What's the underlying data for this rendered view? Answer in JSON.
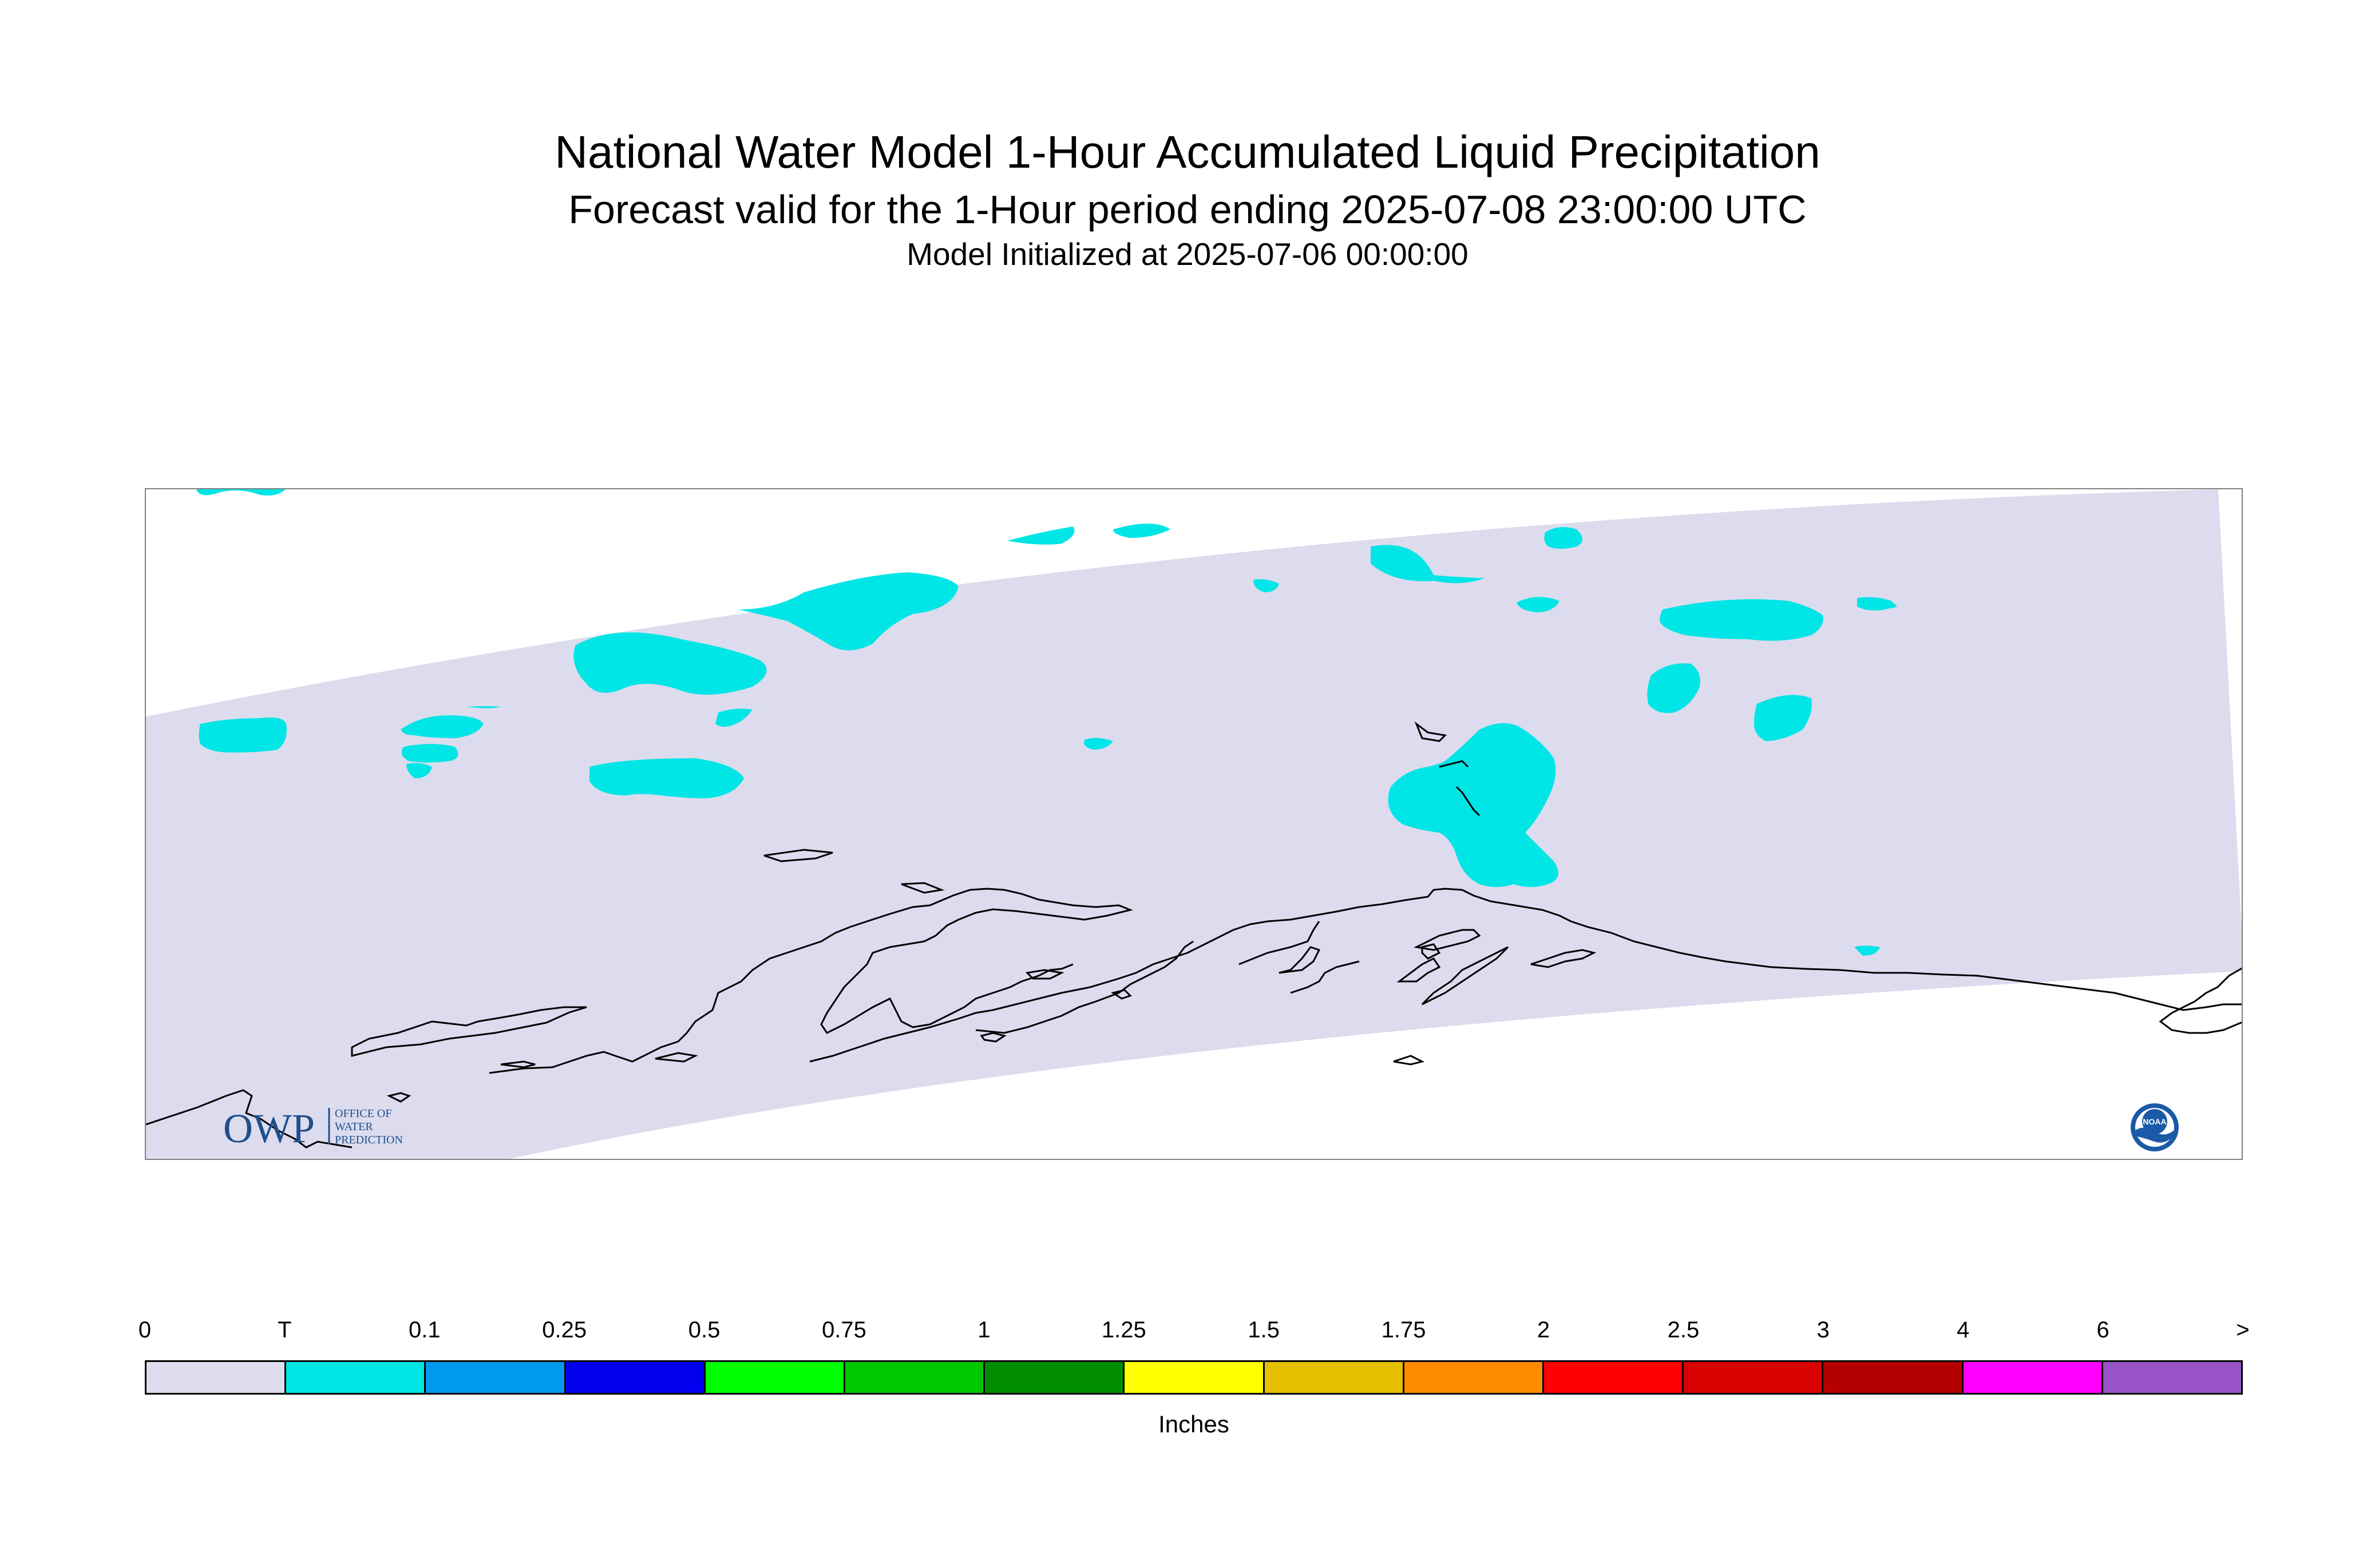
{
  "title": {
    "main": "National Water Model 1-Hour Accumulated Liquid Precipitation",
    "subtitle": "Forecast valid for the 1-Hour period ending 2025-07-08 23:00:00 UTC",
    "init": "Model Initialized at 2025-07-06 00:00:00"
  },
  "map": {
    "region": "Alaska",
    "domain_color": "#dcdcee",
    "precip_color_trace": "#00e5e5",
    "coastline_color": "#000000"
  },
  "logos": {
    "owp": {
      "text": "OWP",
      "sub_lines": [
        "OFFICE OF",
        "WATER",
        "PREDICTION"
      ],
      "color": "#1f4e8c"
    },
    "noaa": {
      "text": "NOAA",
      "color": "#1a5aa6"
    }
  },
  "legend": {
    "unit_label": "Inches",
    "tick_labels": [
      "0",
      "T",
      "0.1",
      "0.25",
      "0.5",
      "0.75",
      "1",
      "1.25",
      "1.5",
      "1.75",
      "2",
      "2.5",
      "3",
      "4",
      "6",
      ">"
    ],
    "swatch_colors": [
      "#dcdcee",
      "#00e5e5",
      "#0099ee",
      "#0000ee",
      "#00ff00",
      "#00c800",
      "#008c00",
      "#ffff00",
      "#e6c000",
      "#ff8c00",
      "#ff0000",
      "#d80000",
      "#b40000",
      "#ff00ff",
      "#9955c8"
    ]
  }
}
